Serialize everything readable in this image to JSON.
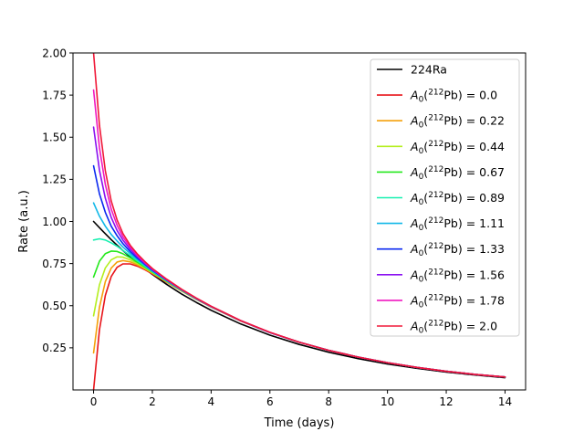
{
  "chart_data": {
    "type": "line",
    "xlabel": "Time (days)",
    "ylabel": "Rate (a.u.)",
    "xlim": [
      -0.7,
      14.7
    ],
    "ylim": [
      0.0,
      2.0
    ],
    "xticks": [
      0,
      2,
      4,
      6,
      8,
      10,
      12,
      14
    ],
    "yticks": [
      0.25,
      0.5,
      0.75,
      1.0,
      1.25,
      1.5,
      1.75,
      2.0
    ],
    "xtick_labels": [
      "0",
      "2",
      "4",
      "6",
      "8",
      "10",
      "12",
      "14"
    ],
    "ytick_labels": [
      "0.25",
      "0.50",
      "0.75",
      "1.00",
      "1.25",
      "1.50",
      "1.75",
      "2.00"
    ],
    "grid": false,
    "legend_position": "upper right",
    "x": [
      0,
      0.2,
      0.4,
      0.6,
      0.8,
      1.0,
      1.25,
      1.5,
      1.75,
      2.0,
      2.5,
      3.0,
      3.5,
      4.0,
      5.0,
      6.0,
      7.0,
      8.0,
      9.0,
      10.0,
      11.0,
      12.0,
      13.0,
      14.0
    ],
    "series": [
      {
        "name": "224Ra",
        "color": "#000000",
        "values": [
          1.0,
          0.963,
          0.927,
          0.892,
          0.859,
          0.827,
          0.789,
          0.753,
          0.719,
          0.686,
          0.625,
          0.569,
          0.519,
          0.473,
          0.392,
          0.325,
          0.27,
          0.224,
          0.186,
          0.154,
          0.128,
          0.106,
          0.088,
          0.073
        ]
      },
      {
        "name": "$A_0(^{212}Pb) = 0.0$",
        "label_main": "A",
        "label_sub": "0",
        "label_open": "(",
        "label_sup": "212",
        "label_close": "Pb) = 0.0",
        "color": "#e8141a",
        "values": [
          0.0,
          0.357,
          0.561,
          0.673,
          0.728,
          0.748,
          0.748,
          0.734,
          0.713,
          0.689,
          0.638,
          0.587,
          0.538,
          0.492,
          0.41,
          0.341,
          0.283,
          0.235,
          0.195,
          0.162,
          0.134,
          0.111,
          0.092,
          0.077
        ]
      },
      {
        "name": "$A_0(^{212}Pb) = 0.22$",
        "label_main": "A",
        "label_sub": "0",
        "label_open": "(",
        "label_sup": "212",
        "label_close": "Pb) = 0.22",
        "color": "#f5a00a",
        "values": [
          0.22,
          0.491,
          0.643,
          0.723,
          0.759,
          0.768,
          0.76,
          0.741,
          0.718,
          0.693,
          0.64,
          0.588,
          0.539,
          0.493,
          0.41,
          0.341,
          0.283,
          0.235,
          0.195,
          0.162,
          0.134,
          0.111,
          0.092,
          0.077
        ]
      },
      {
        "name": "$A_0(^{212}Pb) = 0.44$",
        "label_main": "A",
        "label_sub": "0",
        "label_open": "(",
        "label_sup": "212",
        "label_close": "Pb) = 0.44",
        "color": "#b4ee1e",
        "values": [
          0.44,
          0.624,
          0.724,
          0.772,
          0.79,
          0.788,
          0.772,
          0.749,
          0.723,
          0.696,
          0.642,
          0.589,
          0.539,
          0.493,
          0.411,
          0.341,
          0.283,
          0.235,
          0.195,
          0.162,
          0.134,
          0.111,
          0.092,
          0.077
        ]
      },
      {
        "name": "$A_0(^{212}Pb) = 0.67$",
        "label_main": "A",
        "label_sub": "0",
        "label_open": "(",
        "label_sup": "212",
        "label_close": "Pb) = 0.67",
        "color": "#24e81c",
        "values": [
          0.67,
          0.764,
          0.809,
          0.824,
          0.822,
          0.808,
          0.784,
          0.757,
          0.729,
          0.7,
          0.644,
          0.59,
          0.54,
          0.494,
          0.411,
          0.341,
          0.283,
          0.235,
          0.195,
          0.162,
          0.134,
          0.111,
          0.092,
          0.077
        ]
      },
      {
        "name": "$A_0(^{212}Pb) = 0.89$",
        "label_main": "A",
        "label_sub": "0",
        "label_open": "(",
        "label_sup": "212",
        "label_close": "Pb) = 0.89",
        "color": "#18f0b0",
        "values": [
          0.89,
          0.897,
          0.89,
          0.873,
          0.853,
          0.828,
          0.797,
          0.765,
          0.734,
          0.703,
          0.646,
          0.592,
          0.541,
          0.494,
          0.411,
          0.341,
          0.283,
          0.235,
          0.195,
          0.162,
          0.134,
          0.111,
          0.092,
          0.077
        ]
      },
      {
        "name": "$A_0(^{212}Pb) = 1.11$",
        "label_main": "A",
        "label_sub": "0",
        "label_open": "(",
        "label_sup": "212",
        "label_close": "Pb) = 1.11",
        "color": "#10b8e8",
        "values": [
          1.11,
          1.031,
          0.972,
          0.923,
          0.884,
          0.848,
          0.809,
          0.773,
          0.739,
          0.707,
          0.648,
          0.593,
          0.542,
          0.495,
          0.411,
          0.341,
          0.283,
          0.235,
          0.195,
          0.162,
          0.134,
          0.111,
          0.092,
          0.077
        ]
      },
      {
        "name": "$A_0(^{212}Pb) = 1.33$",
        "label_main": "A",
        "label_sub": "0",
        "label_open": "(",
        "label_sup": "212",
        "label_close": "Pb) = 1.33",
        "color": "#0a28f0",
        "values": [
          1.33,
          1.164,
          1.054,
          0.972,
          0.915,
          0.868,
          0.821,
          0.781,
          0.745,
          0.71,
          0.65,
          0.594,
          0.542,
          0.495,
          0.411,
          0.341,
          0.283,
          0.235,
          0.195,
          0.162,
          0.134,
          0.111,
          0.092,
          0.077
        ]
      },
      {
        "name": "$A_0(^{212}Pb) = 1.56$",
        "label_main": "A",
        "label_sub": "0",
        "label_open": "(",
        "label_sup": "212",
        "label_close": "Pb) = 1.56",
        "color": "#8a10f0",
        "values": [
          1.56,
          1.304,
          1.138,
          1.024,
          0.946,
          0.889,
          0.834,
          0.789,
          0.75,
          0.714,
          0.652,
          0.595,
          0.543,
          0.496,
          0.412,
          0.341,
          0.283,
          0.235,
          0.195,
          0.162,
          0.134,
          0.111,
          0.092,
          0.077
        ]
      },
      {
        "name": "$A_0(^{212}Pb) = 1.78$",
        "label_main": "A",
        "label_sub": "0",
        "label_open": "(",
        "label_sup": "212",
        "label_close": "Pb) = 1.78",
        "color": "#f018c0",
        "values": [
          1.78,
          1.437,
          1.22,
          1.073,
          0.978,
          0.908,
          0.846,
          0.797,
          0.755,
          0.718,
          0.654,
          0.596,
          0.544,
          0.496,
          0.412,
          0.342,
          0.283,
          0.235,
          0.195,
          0.162,
          0.134,
          0.111,
          0.092,
          0.077
        ]
      },
      {
        "name": "$A_0(^{212}Pb) = 2.0$",
        "label_main": "A",
        "label_sub": "0",
        "label_open": "(",
        "label_sup": "212",
        "label_close": "Pb) = 2.0",
        "color": "#f01838",
        "values": [
          2.0,
          1.571,
          1.301,
          1.122,
          1.009,
          0.928,
          0.858,
          0.805,
          0.761,
          0.721,
          0.656,
          0.597,
          0.545,
          0.497,
          0.412,
          0.342,
          0.283,
          0.235,
          0.195,
          0.162,
          0.134,
          0.111,
          0.092,
          0.077
        ]
      }
    ]
  }
}
